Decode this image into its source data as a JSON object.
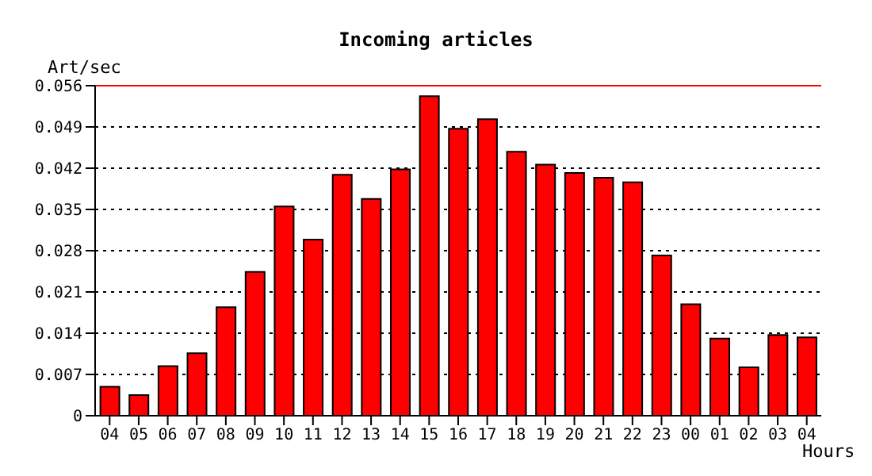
{
  "chart_data": {
    "type": "bar",
    "title": "Incoming articles",
    "xlabel": "Hours",
    "ylabel": "Art/sec",
    "categories": [
      "04",
      "05",
      "06",
      "07",
      "08",
      "09",
      "10",
      "11",
      "12",
      "13",
      "14",
      "15",
      "16",
      "17",
      "18",
      "19",
      "20",
      "21",
      "22",
      "23",
      "00",
      "01",
      "02",
      "03",
      "04"
    ],
    "values": [
      0.0049,
      0.0035,
      0.0084,
      0.0106,
      0.0184,
      0.0244,
      0.0355,
      0.0299,
      0.0409,
      0.0368,
      0.0418,
      0.0542,
      0.0487,
      0.0503,
      0.0448,
      0.0426,
      0.0412,
      0.0404,
      0.0396,
      0.0272,
      0.0189,
      0.0131,
      0.0082,
      0.0137,
      0.0133
    ],
    "color": "#ff0000",
    "ylim": [
      0,
      0.056
    ],
    "yticks": [
      0,
      {
        "value": 0.007,
        "label": "0.007"
      },
      {
        "value": 0.014,
        "label": "0.014"
      },
      {
        "value": 0.021,
        "label": "0.021"
      },
      {
        "value": 0.028,
        "label": "0.028"
      },
      {
        "value": 0.035,
        "label": "0.035"
      },
      {
        "value": 0.042,
        "label": "0.042"
      },
      {
        "value": 0.049,
        "label": "0.049"
      },
      {
        "value": 0.056,
        "label": "0.056"
      }
    ],
    "ref_lines": [
      {
        "axis": "y",
        "value": 0.056,
        "color": "#ff0000"
      }
    ],
    "grid": "y"
  }
}
